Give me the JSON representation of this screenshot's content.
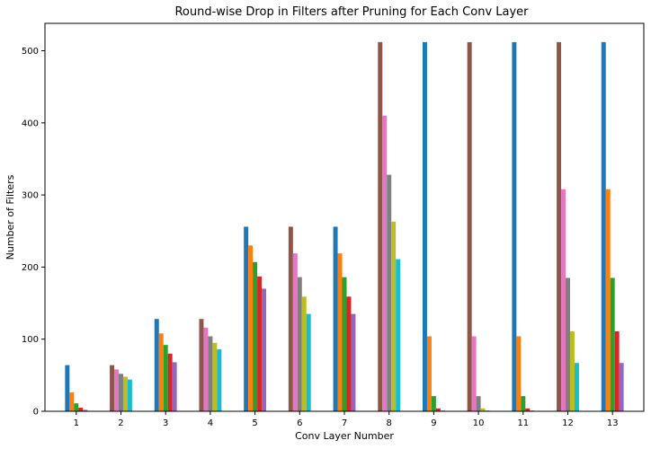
{
  "chart_data": {
    "type": "bar",
    "title": "Round-wise Drop in Filters after Pruning for Each Conv Layer",
    "xlabel": "Conv Layer Number",
    "ylabel": "Number of Filters",
    "categories": [
      "1",
      "2",
      "3",
      "4",
      "5",
      "6",
      "7",
      "8",
      "9",
      "10",
      "11",
      "12",
      "13"
    ],
    "ylim": [
      0,
      538
    ],
    "yticks": [
      0,
      100,
      200,
      300,
      400,
      500
    ],
    "grid": false,
    "legend": "none",
    "groups": [
      {
        "category": "1",
        "start_color_index": 0,
        "values": [
          64,
          26,
          11,
          5,
          2
        ]
      },
      {
        "category": "2",
        "start_color_index": 5,
        "values": [
          64,
          58,
          52,
          48,
          44
        ]
      },
      {
        "category": "3",
        "start_color_index": 0,
        "values": [
          128,
          108,
          92,
          80,
          68
        ]
      },
      {
        "category": "4",
        "start_color_index": 5,
        "values": [
          128,
          116,
          104,
          95,
          86
        ]
      },
      {
        "category": "5",
        "start_color_index": 0,
        "values": [
          256,
          230,
          207,
          187,
          170
        ]
      },
      {
        "category": "6",
        "start_color_index": 5,
        "values": [
          256,
          219,
          186,
          159,
          135
        ]
      },
      {
        "category": "7",
        "start_color_index": 0,
        "values": [
          256,
          219,
          186,
          159,
          135
        ]
      },
      {
        "category": "8",
        "start_color_index": 5,
        "values": [
          512,
          410,
          328,
          263,
          211
        ]
      },
      {
        "category": "9",
        "start_color_index": 0,
        "values": [
          512,
          104,
          21,
          4,
          1
        ]
      },
      {
        "category": "10",
        "start_color_index": 5,
        "values": [
          512,
          104,
          21,
          4,
          1
        ]
      },
      {
        "category": "11",
        "start_color_index": 0,
        "values": [
          512,
          104,
          21,
          4,
          1
        ]
      },
      {
        "category": "12",
        "start_color_index": 5,
        "values": [
          512,
          308,
          185,
          111,
          67
        ]
      },
      {
        "category": "13",
        "start_color_index": 0,
        "values": [
          512,
          308,
          185,
          111,
          67
        ]
      }
    ],
    "colors": [
      "#1f77b4",
      "#ff7f0e",
      "#2ca02c",
      "#d62728",
      "#9467bd",
      "#8c564b",
      "#e377c2",
      "#7f7f7f",
      "#bcbd22",
      "#17becf"
    ]
  }
}
